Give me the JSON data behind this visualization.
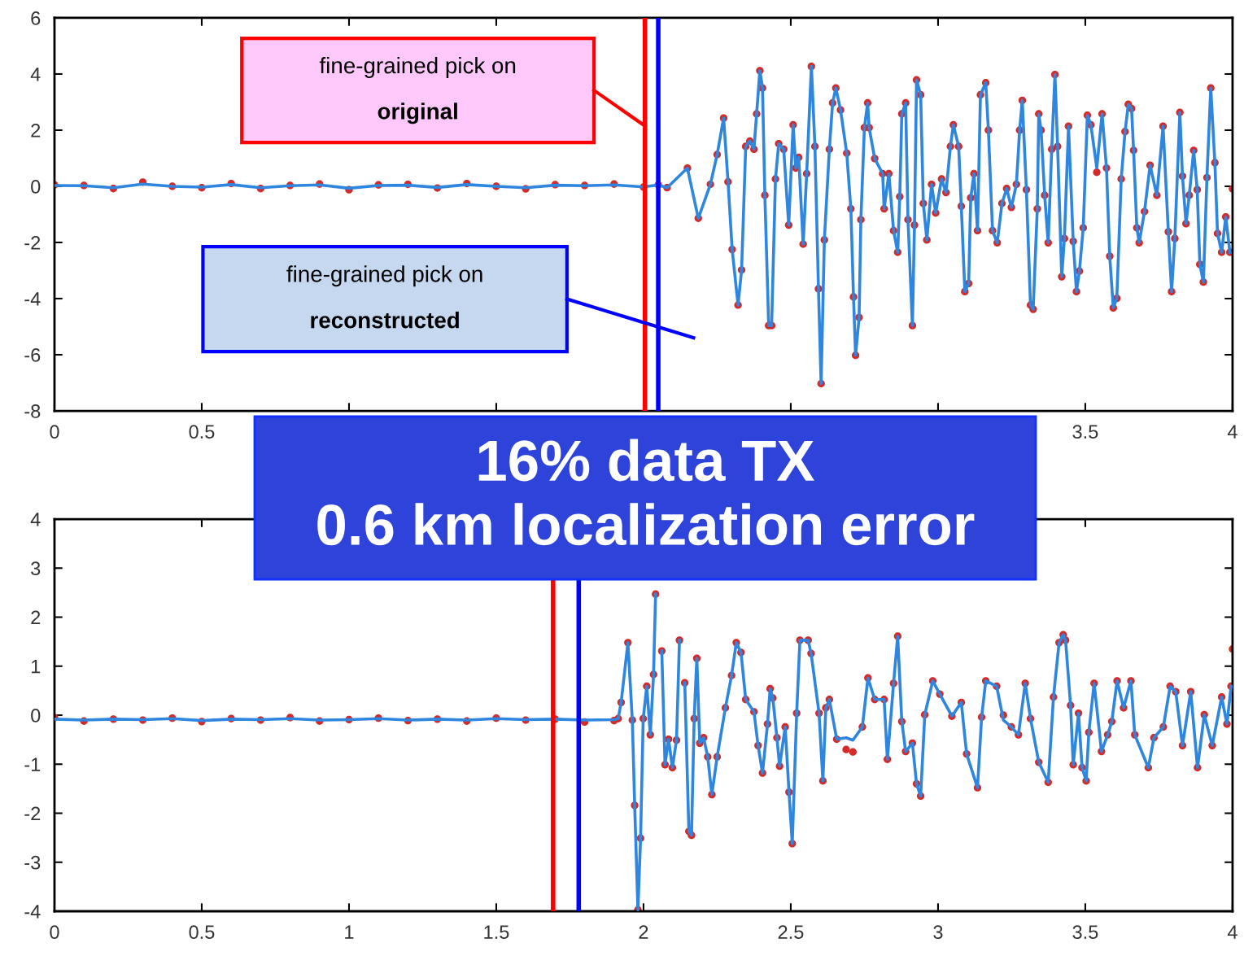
{
  "chart_data": [
    {
      "type": "line",
      "x": [
        0,
        0.1,
        0.2,
        0.3,
        0.4,
        0.5,
        0.6,
        0.7,
        0.8,
        0.9,
        1.0,
        1.1,
        1.2,
        1.3,
        1.4,
        1.5,
        1.6,
        1.7,
        1.8,
        1.9,
        2.0,
        2.05,
        2.08,
        2.149,
        2.186,
        2.227,
        2.25,
        2.272,
        2.287,
        2.301,
        2.321,
        2.333,
        2.347,
        2.361,
        2.375,
        2.384,
        2.395,
        2.404,
        2.412,
        2.425,
        2.435,
        2.448,
        2.459,
        2.476,
        2.493,
        2.508,
        2.517,
        2.527,
        2.542,
        2.554,
        2.57,
        2.582,
        2.594,
        2.603,
        2.614,
        2.631,
        2.642,
        2.653,
        2.669,
        2.69,
        2.704,
        2.713,
        2.72,
        2.732,
        2.738,
        2.75,
        2.761,
        2.766,
        2.785,
        2.812,
        2.817,
        2.833,
        2.849,
        2.863,
        2.87,
        2.877,
        2.89,
        2.898,
        2.913,
        2.92,
        2.927,
        2.941,
        2.95,
        2.962,
        2.978,
        2.992,
        3.012,
        3.027,
        3.042,
        3.052,
        3.07,
        3.079,
        3.091,
        3.104,
        3.111,
        3.122,
        3.134,
        3.144,
        3.162,
        3.171,
        3.185,
        3.201,
        3.217,
        3.233,
        3.249,
        3.266,
        3.277,
        3.286,
        3.3,
        3.314,
        3.323,
        3.337,
        3.342,
        3.35,
        3.362,
        3.374,
        3.386,
        3.397,
        3.406,
        3.42,
        3.429,
        3.443,
        3.459,
        3.47,
        3.48,
        3.493,
        3.507,
        3.519,
        3.539,
        3.557,
        3.572,
        3.583,
        3.595,
        3.607,
        3.622,
        3.635,
        3.646,
        3.657,
        3.664,
        3.675,
        3.683,
        3.701,
        3.72,
        3.743,
        3.764,
        3.782,
        3.793,
        3.804,
        3.821,
        3.83,
        3.842,
        3.853,
        3.868,
        3.88,
        3.889,
        3.901,
        3.913,
        3.926,
        3.94,
        3.949,
        3.963,
        3.977,
        3.991,
        4.0
      ],
      "series": [
        {
          "type": "scatter",
          "marker": "circle",
          "color": "#d42a2a",
          "values": [
            0.05,
            0.03,
            -0.08,
            0.15,
            0.0,
            -0.05,
            0.1,
            -0.08,
            0.03,
            0.08,
            -0.12,
            0.05,
            0.07,
            -0.06,
            0.1,
            0.0,
            -0.09,
            0.06,
            0.03,
            0.08,
            -0.03,
            0.05,
            -0.05,
            0.65,
            -1.14,
            0.07,
            1.13,
            2.43,
            0.16,
            -2.25,
            -4.23,
            -2.98,
            1.42,
            1.61,
            1.32,
            2.58,
            4.12,
            3.5,
            -0.32,
            -4.96,
            -4.96,
            0.26,
            1.52,
            1.32,
            -1.38,
            2.19,
            0.65,
            1.03,
            -2.06,
            0.45,
            4.27,
            1.42,
            -3.65,
            -7.03,
            -1.91,
            1.32,
            2.97,
            3.5,
            2.72,
            1.18,
            -0.8,
            -3.94,
            -6.02,
            -4.67,
            -1.19,
            2.09,
            2.97,
            2.09,
            0.99,
            0.45,
            -0.8,
            0.45,
            -1.58,
            -2.35,
            -0.37,
            2.58,
            2.97,
            -1.19,
            -4.96,
            -1.38,
            3.79,
            3.26,
            -0.61,
            -1.91,
            0.07,
            -0.95,
            0.26,
            -0.22,
            1.42,
            2.19,
            1.42,
            -0.71,
            -3.75,
            -3.46,
            -0.41,
            0.45,
            -1.58,
            3.26,
            3.69,
            2.0,
            -1.58,
            -2.01,
            -0.61,
            -0.08,
            -0.75,
            0.07,
            2.0,
            3.06,
            -0.12,
            -4.23,
            -4.38,
            -0.8,
            2.58,
            2.0,
            -0.32,
            -2.01,
            1.32,
            3.98,
            1.42,
            -3.22,
            -1.86,
            2.14,
            -1.96,
            -3.75,
            -3.02,
            -1.48,
            2.53,
            2.19,
            0.5,
            2.58,
            0.65,
            -2.49,
            -4.33,
            -3.99,
            0.26,
            1.95,
            2.92,
            2.77,
            1.28,
            -1.48,
            -2.01,
            -0.9,
            0.75,
            -0.32,
            2.14,
            -1.62,
            -3.75,
            -1.86,
            2.63,
            0.36,
            -1.33,
            -0.32,
            1.28,
            -0.12,
            -2.78,
            -3.41,
            0.31,
            3.5,
            0.84,
            -1.68,
            -2.35,
            -1.09,
            -2.35,
            -0.09
          ]
        },
        {
          "color": "#2e86de",
          "values": [
            0.03,
            0.02,
            -0.05,
            0.08,
            0.0,
            -0.03,
            0.06,
            -0.05,
            0.02,
            0.05,
            -0.07,
            0.03,
            0.04,
            -0.04,
            0.06,
            0.0,
            -0.05,
            0.04,
            0.02,
            0.05,
            -0.02,
            0.05,
            -0.05,
            0.65,
            -1.14,
            0.07,
            1.13,
            2.43,
            0.16,
            -2.25,
            -4.23,
            -2.98,
            1.42,
            1.61,
            1.32,
            2.58,
            4.12,
            3.5,
            -0.32,
            -4.96,
            -4.96,
            0.26,
            1.52,
            1.32,
            -1.38,
            2.19,
            0.65,
            1.03,
            -2.06,
            0.45,
            4.27,
            1.42,
            -3.65,
            -7.03,
            -1.91,
            1.32,
            2.97,
            3.5,
            2.72,
            1.18,
            -0.8,
            -3.94,
            -6.02,
            -4.67,
            -1.19,
            2.09,
            2.97,
            2.09,
            0.99,
            0.45,
            -0.8,
            0.45,
            -1.58,
            -2.35,
            -0.37,
            2.58,
            2.97,
            -1.19,
            -4.96,
            -1.38,
            3.79,
            3.26,
            -0.61,
            -1.91,
            0.07,
            -0.95,
            0.26,
            -0.22,
            1.42,
            2.19,
            1.42,
            -0.71,
            -3.75,
            -3.46,
            -0.41,
            0.45,
            -1.58,
            3.26,
            3.69,
            2.0,
            -1.58,
            -2.01,
            -0.61,
            -0.08,
            -0.75,
            0.07,
            2.0,
            3.06,
            -0.12,
            -4.23,
            -4.38,
            -0.8,
            2.58,
            2.0,
            -0.32,
            -2.01,
            1.32,
            3.98,
            1.42,
            -3.22,
            -1.86,
            2.14,
            -1.96,
            -3.75,
            -3.02,
            -1.48,
            2.53,
            2.19,
            0.65,
            2.58,
            0.65,
            -2.49,
            -4.33,
            -3.99,
            0.26,
            1.95,
            2.92,
            2.77,
            1.28,
            -1.48,
            -2.01,
            -0.9,
            0.75,
            -0.32,
            2.14,
            -1.62,
            -3.75,
            -1.86,
            2.63,
            0.36,
            -1.33,
            -0.32,
            1.28,
            -0.12,
            -2.78,
            -3.41,
            0.31,
            3.5,
            0.84,
            -1.68,
            -2.35,
            -1.09,
            -2.35,
            null
          ]
        }
      ],
      "xlim": [
        0,
        4
      ],
      "xticks": [
        0,
        0.5,
        {
          "value": 1,
          "label": null
        },
        {
          "value": 1.5,
          "label": null
        },
        {
          "value": 2,
          "label": null
        },
        {
          "value": 2.5,
          "label": null
        },
        {
          "value": 3,
          "label": null
        },
        3.5,
        4
      ],
      "ylim": [
        -8,
        6
      ],
      "yticks": [
        -8,
        -6,
        -4,
        -2,
        0,
        2,
        4,
        6
      ],
      "ref_lines": [
        {
          "axis": "x",
          "value": 2.005,
          "color": "#ff0000"
        },
        {
          "axis": "x",
          "value": 2.05,
          "color": "#0000ff"
        }
      ],
      "annotations": [
        "fine-grained pick on original",
        "fine-grained pick on reconstructed",
        "16% data TX\n0.6 km localization error"
      ],
      "grid": false
    },
    {
      "type": "line",
      "x": [
        0,
        0.1,
        0.2,
        0.3,
        0.4,
        0.5,
        0.6,
        0.7,
        0.8,
        0.9,
        1.0,
        1.1,
        1.2,
        1.3,
        1.4,
        1.5,
        1.6,
        1.7,
        1.8,
        1.9,
        1.914,
        1.924,
        1.947,
        1.962,
        1.97,
        1.981,
        1.99,
        1.999,
        2.011,
        2.023,
        2.034,
        2.041,
        2.05,
        2.062,
        2.073,
        2.085,
        2.098,
        2.112,
        2.122,
        2.135,
        2.14,
        2.154,
        2.163,
        2.172,
        2.181,
        2.191,
        2.204,
        2.218,
        2.232,
        2.25,
        2.278,
        2.299,
        2.315,
        2.331,
        2.347,
        2.375,
        2.389,
        2.404,
        2.421,
        2.43,
        2.439,
        2.453,
        2.462,
        2.481,
        2.494,
        2.505,
        2.52,
        2.531,
        2.559,
        2.569,
        2.596,
        2.609,
        2.619,
        2.631,
        2.656,
        2.688,
        2.711,
        2.743,
        2.762,
        2.785,
        2.817,
        2.828,
        2.849,
        2.863,
        2.877,
        2.89,
        2.913,
        2.927,
        2.941,
        2.955,
        2.982,
        3.006,
        3.047,
        3.079,
        3.097,
        3.134,
        3.148,
        3.162,
        3.199,
        3.222,
        3.249,
        3.273,
        3.296,
        3.314,
        3.342,
        3.374,
        3.392,
        3.411,
        3.425,
        3.433,
        3.45,
        3.459,
        3.477,
        3.489,
        3.503,
        3.512,
        3.53,
        3.555,
        3.576,
        3.59,
        3.608,
        3.63,
        3.655,
        3.668,
        3.714,
        3.733,
        3.765,
        3.788,
        3.807,
        3.83,
        3.858,
        3.881,
        3.904,
        3.931,
        3.963,
        3.981,
        3.995,
        4.0
      ],
      "series": [
        {
          "type": "scatter",
          "marker": "circle",
          "color": "#d42a2a",
          "values": [
            -0.05,
            -0.12,
            -0.08,
            -0.1,
            -0.06,
            -0.13,
            -0.07,
            -0.1,
            -0.05,
            -0.12,
            -0.09,
            -0.06,
            -0.11,
            -0.08,
            -0.12,
            -0.06,
            -0.1,
            -0.08,
            -0.14,
            -0.11,
            -0.07,
            0.26,
            1.48,
            -0.1,
            -1.84,
            -3.97,
            -2.51,
            -0.07,
            0.59,
            -0.4,
            0.83,
            2.47,
            null,
            1.31,
            -1.01,
            -0.49,
            -1.07,
            -0.51,
            1.53,
            null,
            0.66,
            -2.37,
            -2.45,
            -0.07,
            1.16,
            -0.57,
            -0.46,
            -0.85,
            -1.62,
            -0.85,
            0.15,
            0.81,
            1.48,
            1.28,
            0.32,
            0.07,
            -0.62,
            -1.18,
            -0.18,
            0.54,
            0.35,
            -0.46,
            -1.04,
            -0.24,
            -1.57,
            -2.62,
            0.04,
            1.53,
            1.53,
            1.26,
            0.04,
            -1.34,
            0.15,
            0.32,
            -0.49,
            -0.7,
            -0.75,
            -0.24,
            0.76,
            0.32,
            0.32,
            -0.9,
            0.65,
            1.61,
            -0.13,
            -0.74,
            -0.57,
            -1.4,
            -1.65,
            0.01,
            0.7,
            0.43,
            -0.02,
            0.26,
            -0.79,
            -1.48,
            -0.04,
            0.7,
            0.59,
            0.0,
            -0.24,
            -0.4,
            0.65,
            -0.07,
            -0.96,
            -1.37,
            0.37,
            1.48,
            1.64,
            1.53,
            0.2,
            -1.01,
            0.04,
            -1.07,
            -1.34,
            -0.35,
            0.65,
            -0.74,
            -0.4,
            -0.13,
            0.7,
            0.15,
            0.7,
            -0.4,
            -1.07,
            -0.46,
            -0.24,
            0.59,
            0.48,
            -0.62,
            0.48,
            -1.07,
            0.01,
            -0.62,
            0.37,
            -0.18,
            0.59,
            1.35
          ]
        },
        {
          "color": "#2e86de",
          "values": [
            -0.08,
            -0.1,
            -0.08,
            -0.09,
            -0.07,
            -0.11,
            -0.08,
            -0.09,
            -0.07,
            -0.1,
            -0.09,
            -0.07,
            -0.1,
            -0.08,
            -0.1,
            -0.07,
            -0.09,
            -0.08,
            -0.1,
            -0.09,
            -0.07,
            0.26,
            1.48,
            -0.1,
            -1.84,
            -3.97,
            -2.51,
            -0.07,
            0.59,
            -0.4,
            0.83,
            2.47,
            null,
            1.31,
            -1.01,
            -0.49,
            -1.07,
            -0.51,
            1.53,
            null,
            0.66,
            -2.37,
            -2.45,
            -0.07,
            1.16,
            -0.57,
            -0.46,
            -0.85,
            -1.62,
            -0.85,
            0.15,
            0.81,
            1.48,
            1.28,
            0.32,
            0.07,
            -0.62,
            -1.18,
            -0.18,
            0.54,
            0.35,
            -0.46,
            -1.04,
            -0.24,
            -1.57,
            -2.62,
            0.04,
            1.53,
            1.53,
            1.26,
            0.04,
            -1.34,
            0.15,
            0.32,
            -0.49,
            -0.46,
            -0.51,
            -0.24,
            0.76,
            0.32,
            0.32,
            -0.9,
            0.65,
            1.61,
            -0.13,
            -0.74,
            -0.57,
            -1.4,
            -1.65,
            0.01,
            0.7,
            0.43,
            -0.02,
            0.26,
            -0.79,
            -1.48,
            -0.04,
            0.7,
            0.59,
            -0.1,
            -0.24,
            -0.4,
            0.65,
            -0.07,
            -0.96,
            -1.37,
            0.37,
            1.48,
            1.64,
            1.53,
            0.2,
            -1.01,
            0.04,
            -1.07,
            -1.34,
            -0.35,
            0.65,
            -0.74,
            -0.4,
            -0.13,
            0.7,
            0.15,
            0.7,
            -0.4,
            -1.07,
            -0.46,
            -0.24,
            0.59,
            0.48,
            -0.62,
            0.48,
            -1.07,
            0.01,
            -0.62,
            0.37,
            -0.18,
            0.59,
            null
          ]
        }
      ],
      "xlim": [
        0,
        4
      ],
      "xticks": [
        0,
        0.5,
        1,
        1.5,
        2,
        2.5,
        3,
        3.5,
        4
      ],
      "ylim": [
        -4,
        4
      ],
      "yticks": [
        -4,
        -3,
        -2,
        -1,
        0,
        1,
        2,
        3,
        4
      ],
      "ref_lines": [
        {
          "axis": "x",
          "value": 1.693,
          "color": "#ff0000"
        },
        {
          "axis": "x",
          "value": 1.78,
          "color": "#0000ff"
        }
      ],
      "grid": false
    }
  ]
}
